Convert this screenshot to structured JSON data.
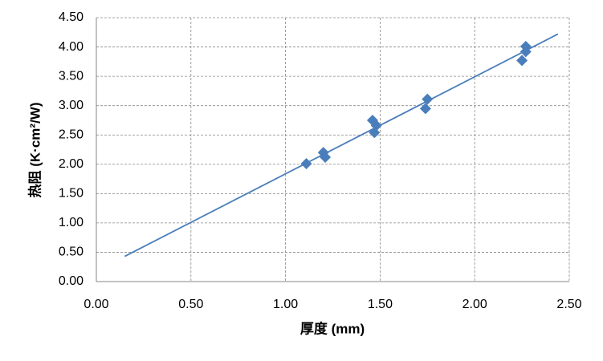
{
  "chart_data": {
    "type": "scatter",
    "xlabel": "厚度 (mm)",
    "ylabel": "热阻 (K·cm²/W)",
    "xlim": [
      0,
      2.5
    ],
    "ylim": [
      0,
      4.5
    ],
    "xticks": [
      {
        "value": 0,
        "label": "0.00"
      },
      {
        "value": 0.5,
        "label": "0.50"
      },
      {
        "value": 1,
        "label": "1.00"
      },
      {
        "value": 1.5,
        "label": "1.50"
      },
      {
        "value": 2,
        "label": "2.00"
      },
      {
        "value": 2.5,
        "label": "2.50"
      }
    ],
    "yticks": [
      {
        "value": 0,
        "label": "0.00"
      },
      {
        "value": 0.5,
        "label": "0.50"
      },
      {
        "value": 1,
        "label": "1.00"
      },
      {
        "value": 1.5,
        "label": "1.50"
      },
      {
        "value": 2,
        "label": "2.00"
      },
      {
        "value": 2.5,
        "label": "2.50"
      },
      {
        "value": 3,
        "label": "3.00"
      },
      {
        "value": 3.5,
        "label": "3.50"
      },
      {
        "value": 4,
        "label": "4.00"
      },
      {
        "value": 4.5,
        "label": "4.50"
      }
    ],
    "grid": true,
    "series": [
      {
        "type": "scatter",
        "color": "#4a7ebb",
        "x": [
          1.11,
          1.2,
          1.21,
          1.46,
          1.48,
          1.47,
          1.74,
          1.75,
          2.25,
          2.27,
          2.27
        ],
        "values": [
          2.01,
          2.2,
          2.12,
          2.75,
          2.66,
          2.54,
          2.95,
          3.11,
          3.77,
          4.01,
          3.92
        ]
      },
      {
        "type": "line",
        "color": "#4a7ebb",
        "x": [
          0.15,
          2.44
        ],
        "values": [
          0.43,
          4.22
        ]
      }
    ]
  }
}
